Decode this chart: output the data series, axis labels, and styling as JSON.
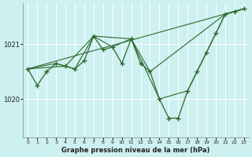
{
  "background_color": "#cdf0f0",
  "grid_color": "#ffffff",
  "line_color": "#2d6a2d",
  "marker_color": "#2d6a2d",
  "xlabel": "Graphe pression niveau de la mer (hPa)",
  "xlim": [
    -0.5,
    23.5
  ],
  "ylim": [
    1019.3,
    1021.75
  ],
  "yticks": [
    1020,
    1021
  ],
  "xticks": [
    0,
    1,
    2,
    3,
    4,
    5,
    6,
    7,
    8,
    9,
    10,
    11,
    12,
    13,
    14,
    15,
    16,
    17,
    18,
    19,
    20,
    21,
    22,
    23
  ],
  "series_main": {
    "x": [
      0,
      1,
      2,
      3,
      4,
      5,
      6,
      7,
      8,
      9,
      10,
      11,
      12,
      13,
      14,
      15,
      16,
      17,
      18,
      19,
      20,
      21,
      22,
      23
    ],
    "y": [
      1020.55,
      1020.25,
      1020.5,
      1020.65,
      1020.6,
      1020.55,
      1020.7,
      1021.15,
      1020.9,
      1020.95,
      1020.65,
      1021.1,
      1020.65,
      1020.5,
      1020.0,
      1019.65,
      1019.65,
      1020.15,
      1020.5,
      1020.85,
      1021.2,
      1021.55,
      1021.6,
      1021.65
    ]
  },
  "series_lines": [
    {
      "x": [
        0,
        3,
        5,
        7,
        9,
        11,
        13,
        21,
        22,
        23
      ],
      "y": [
        1020.55,
        1020.65,
        1020.55,
        1021.15,
        1020.95,
        1021.1,
        1020.5,
        1021.55,
        1021.6,
        1021.65
      ]
    },
    {
      "x": [
        0,
        4,
        7,
        11,
        14,
        17,
        21,
        23
      ],
      "y": [
        1020.55,
        1020.6,
        1021.15,
        1021.1,
        1020.0,
        1020.15,
        1021.55,
        1021.65
      ]
    },
    {
      "x": [
        0,
        23
      ],
      "y": [
        1020.55,
        1021.65
      ]
    }
  ]
}
